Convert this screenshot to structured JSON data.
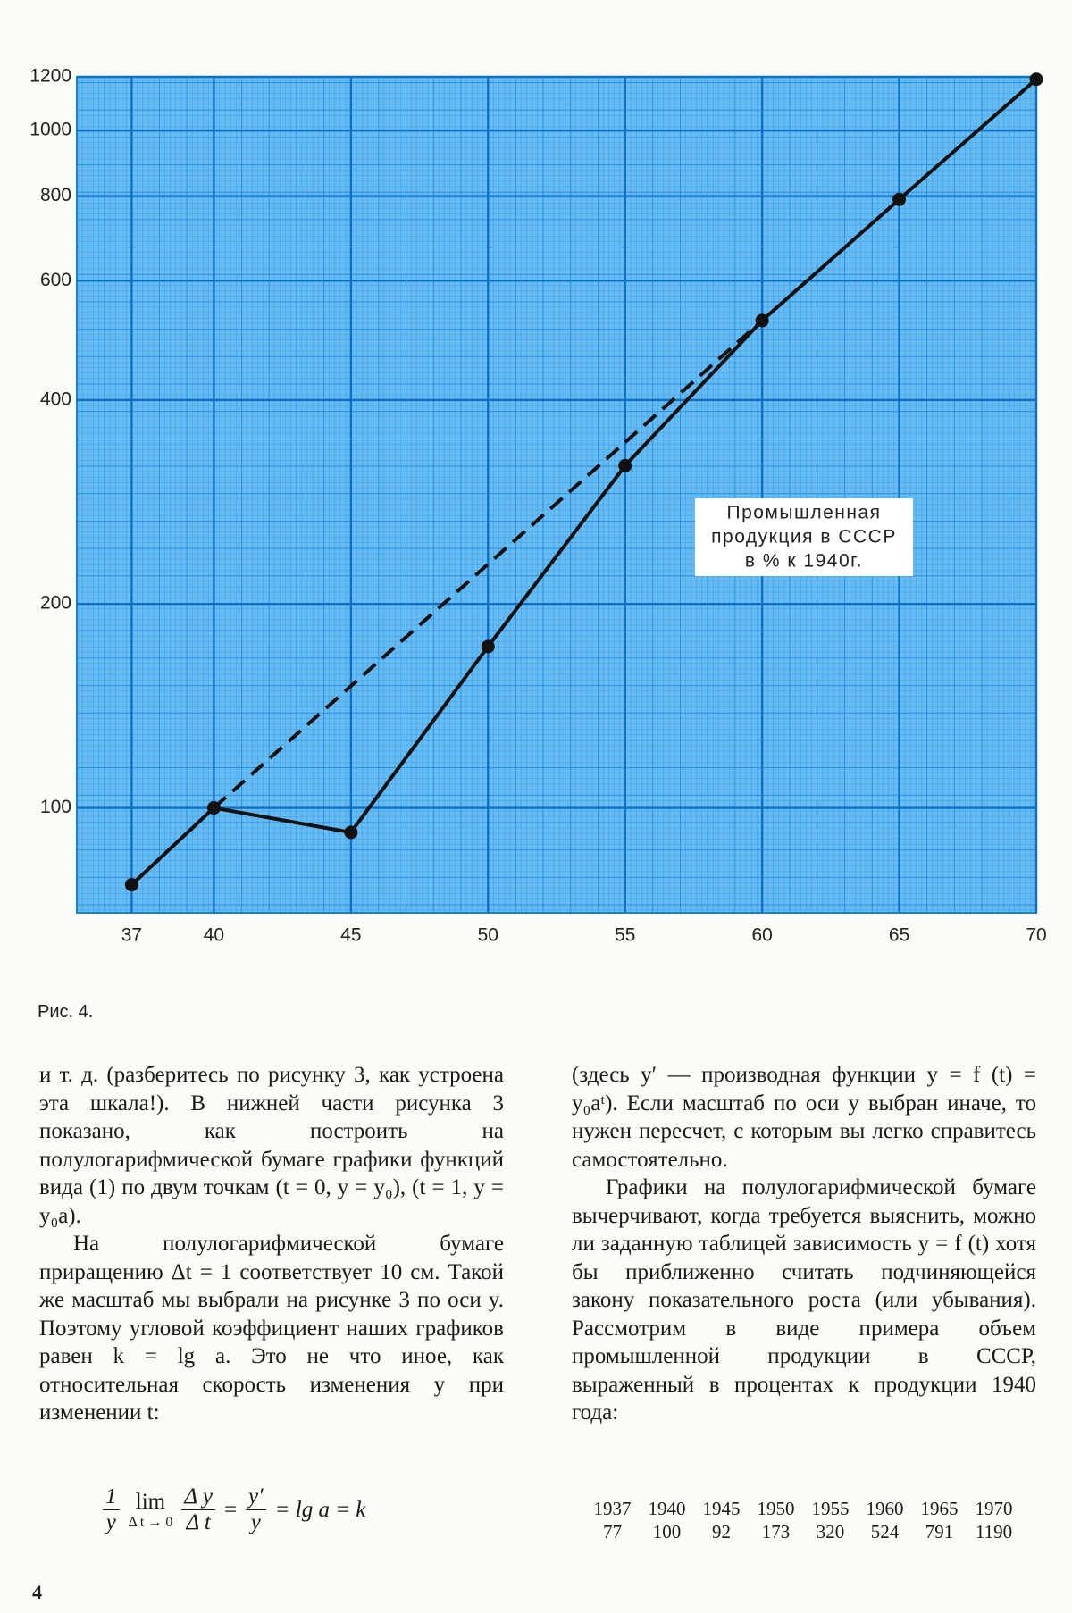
{
  "chart_data": {
    "type": "line",
    "y_scale": "log",
    "grid": true,
    "xlim": [
      1935,
      1970
    ],
    "xticks": [
      {
        "value": 1937,
        "label": "37"
      },
      {
        "value": 1940,
        "label": "40"
      },
      {
        "value": 1945,
        "label": "45"
      },
      {
        "value": 1950,
        "label": "50"
      },
      {
        "value": 1955,
        "label": "55"
      },
      {
        "value": 1960,
        "label": "60"
      },
      {
        "value": 1965,
        "label": "65"
      },
      {
        "value": 1970,
        "label": "70"
      }
    ],
    "ylim": [
      70,
      1200
    ],
    "yticks": [
      100,
      200,
      400,
      600,
      800,
      1000,
      1200
    ],
    "annotation": [
      "Промышленная",
      "продукция в СССР",
      "в % к 1940г."
    ],
    "series": [
      {
        "color": "#111111",
        "style": "solid",
        "markers": true,
        "x": [
          1937,
          1940,
          1945,
          1950,
          1955,
          1960,
          1965,
          1970
        ],
        "values": [
          77,
          100,
          92,
          173,
          320,
          524,
          791,
          1190
        ]
      },
      {
        "color": "#111111",
        "style": "dashed",
        "markers": false,
        "x": [
          1940,
          1960
        ],
        "values": [
          100,
          524
        ]
      }
    ]
  },
  "caption": "Рис. 4.",
  "left_column": [
    "и т. д. (разберитесь по рисунку 3, как устроена эта шкала!). В нижней части рисунка 3 показано, как построить на полулогарифмической бумаге графики функций вида (1) по двум точкам (t = 0, y = y₀), (t = 1, y = y₀a).",
    "На полулогарифмической бумаге приращению Δt = 1 соответствует 10 см. Такой же масштаб мы выбрали на рисунке 3 по оси y. Поэтому угловой коэффициент наших графиков равен k = lg a. Это не что иное, как относительная скорость изменения y при изменении t:"
  ],
  "formula": {
    "num1": "1",
    "den1": "y",
    "lim": "lim",
    "lim_sub": "Δ t → 0",
    "num2": "Δ y",
    "den2": "Δ t",
    "eq1": "=",
    "num3": "y′",
    "den3": "y",
    "rest": "= lg a = k"
  },
  "right_column": [
    "(здесь y′ — производная функции y = f (t) = y₀aᵗ). Если масштаб по оси y выбран иначе, то нужен пересчет, с которым вы легко справитесь самостоятельно.",
    "Графики на полулогарифмической бумаге вычерчивают, когда требуется выяснить, можно ли заданную таблицей зависимость y = f (t) хотя бы приближенно считать подчиняющейся закону показательного роста (или убывания). Рассмотрим в виде примера объем промышленной продукции в СССР, выраженный в процентах к продукции 1940 года:"
  ],
  "page_number": "4"
}
